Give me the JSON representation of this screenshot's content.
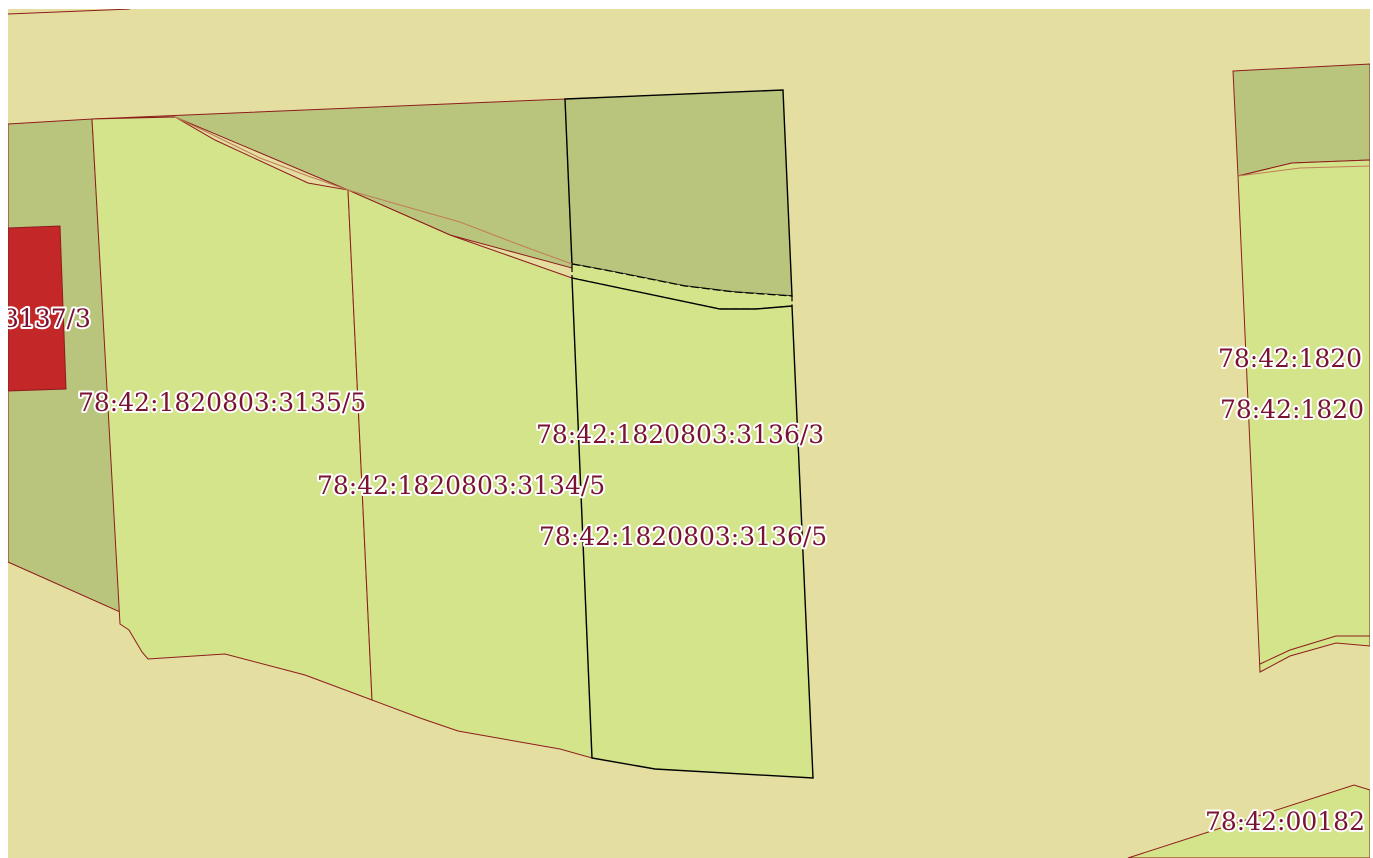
{
  "map": {
    "colors": {
      "background": "#e4dfa0",
      "parcel_light": "#d3e48a",
      "parcel_dark": "#b9c57d",
      "parcel_red": "#c32728",
      "boundary": "#8e1c1c",
      "selected_boundary": "#000000",
      "label": "#7a1232"
    },
    "labels": {
      "l1": "3137/3",
      "l2": "78:42:1820803:3135/5",
      "l3": "78:42:1820803:3136/3",
      "l4": "78:42:1820803:3134/5",
      "l5": "78:42:1820803:3136/5",
      "l6": "78:42:1820",
      "l7": "78:42:1820",
      "l8": "78:42:00182"
    }
  }
}
